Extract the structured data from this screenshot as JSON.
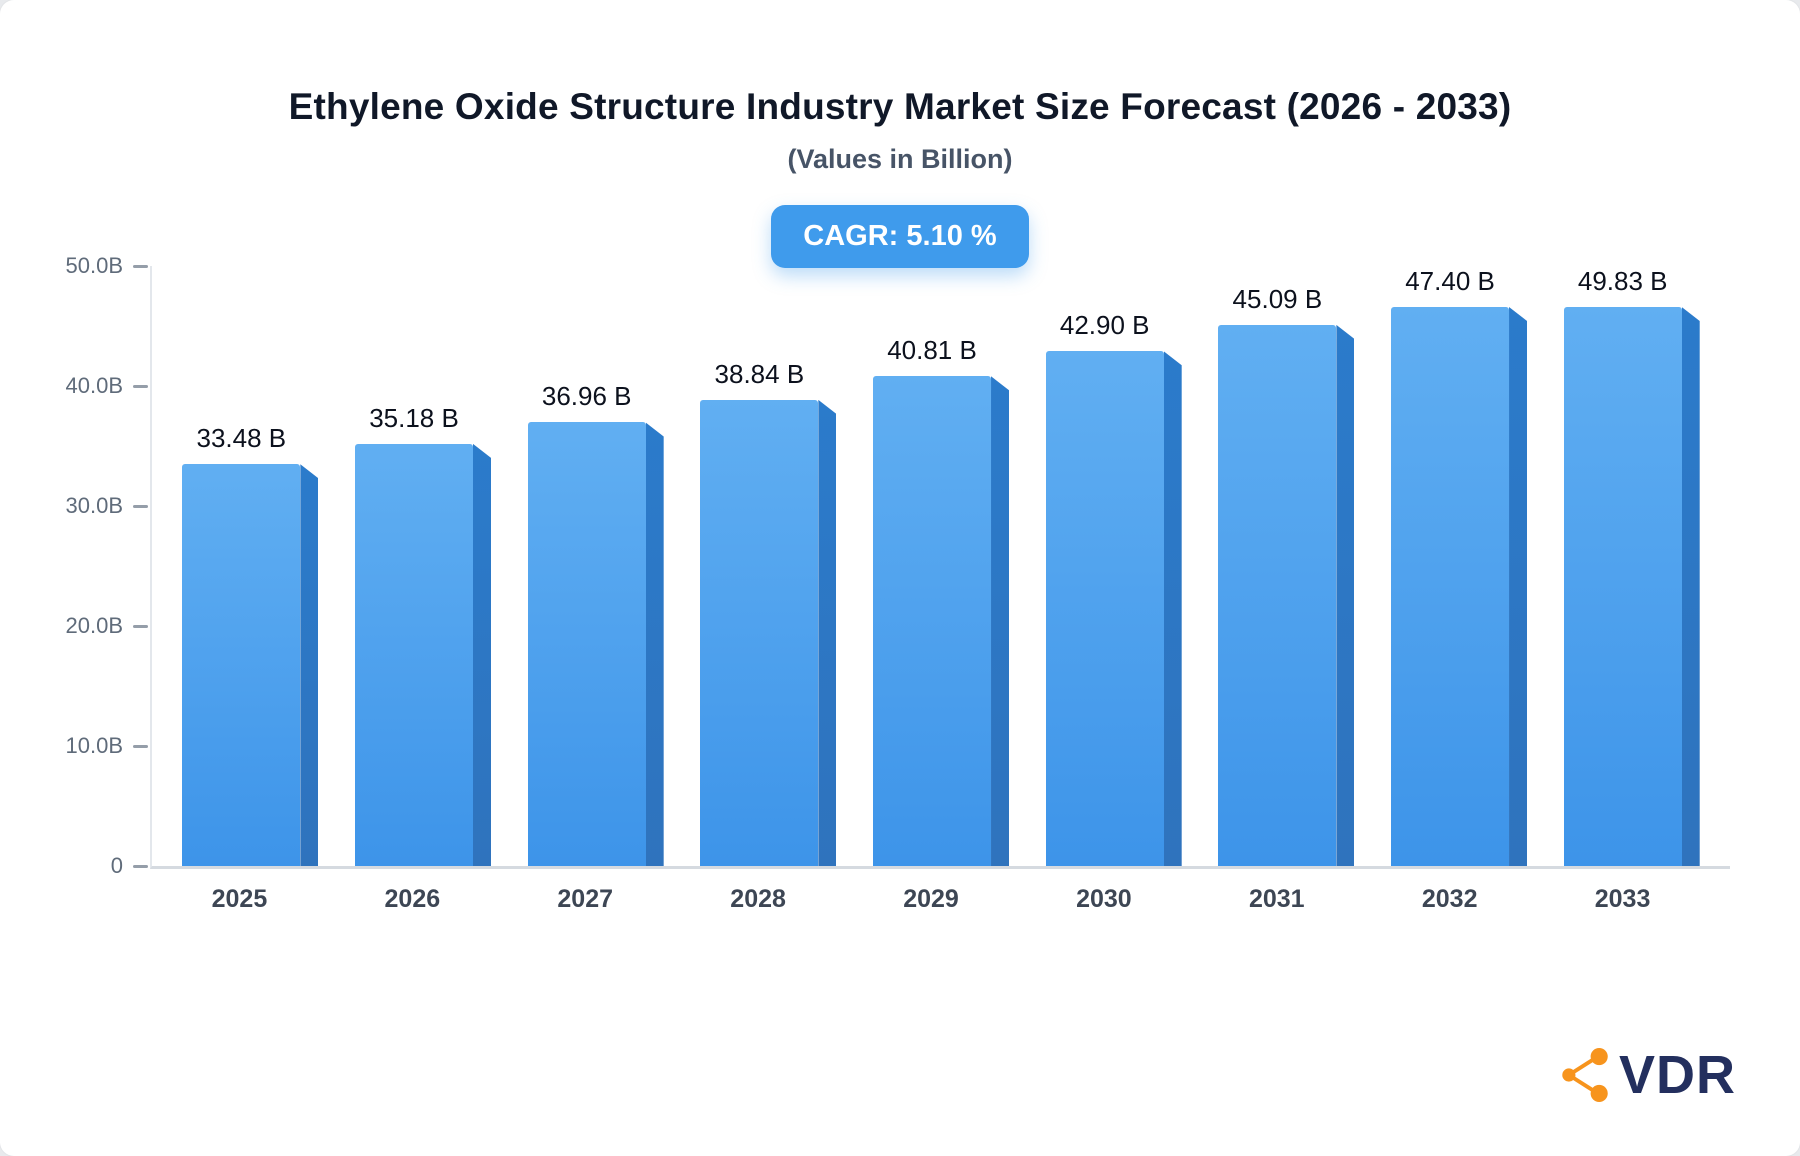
{
  "header": {
    "title": "Ethylene Oxide Structure Industry Market Size Forecast (2026 - 2033)",
    "subtitle": "(Values in Billion)"
  },
  "badge": {
    "label": "CAGR: 5.10 %"
  },
  "logo": {
    "text": "VDR",
    "icon": "molecule-icon"
  },
  "colors": {
    "title": "#101828",
    "badge_bg": "#3F9BEC",
    "bar_top": "#61AFF2",
    "bar_bottom": "#3D94E9",
    "bar_side": "#2B7BCB",
    "logo_text": "#232F5E",
    "logo_accent": "#F7941D"
  },
  "chart_data": {
    "type": "bar",
    "title": "Ethylene Oxide Structure Industry Market Size Forecast (2026 - 2033)",
    "subtitle": "(Values in Billion)",
    "categories": [
      "2025",
      "2026",
      "2027",
      "2028",
      "2029",
      "2030",
      "2031",
      "2032",
      "2033"
    ],
    "values": [
      33.48,
      35.18,
      36.96,
      38.84,
      40.81,
      42.9,
      45.09,
      47.4,
      49.83
    ],
    "bar_labels": [
      "33.48 B",
      "35.18 B",
      "36.96 B",
      "38.84 B",
      "40.81 B",
      "42.90 B",
      "45.09 B",
      "47.40 B",
      "49.83 B"
    ],
    "xlabel": "",
    "ylabel": "",
    "ylim": [
      0,
      50
    ],
    "grid": false,
    "legend": false,
    "y_ticks": [
      {
        "label": "0",
        "value": 0
      },
      {
        "label": "10.0B",
        "value": 10
      },
      {
        "label": "20.0B",
        "value": 20
      },
      {
        "label": "30.0B",
        "value": 30
      },
      {
        "label": "40.0B",
        "value": 40
      },
      {
        "label": "50.0B",
        "value": 50
      }
    ]
  }
}
